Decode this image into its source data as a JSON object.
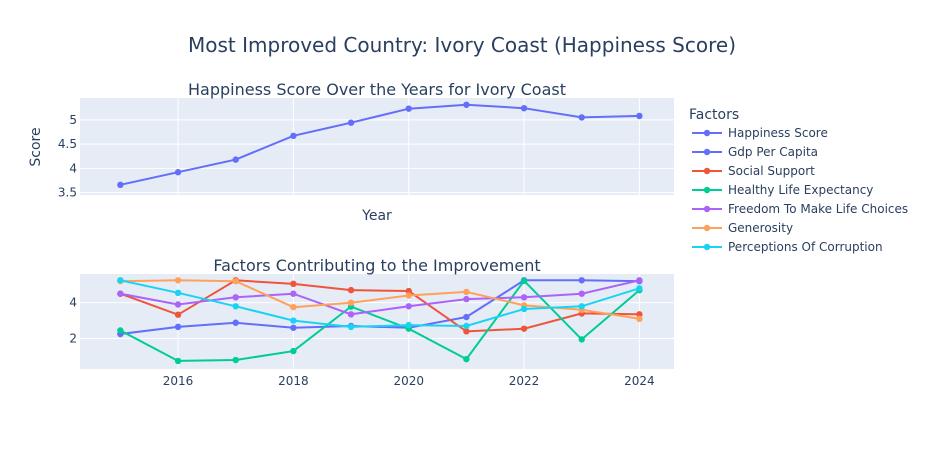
{
  "title": "Most Improved Country: Ivory Coast (Happiness Score)",
  "legend": {
    "title": "Factors",
    "placement": "right"
  },
  "colors": {
    "background": "#ffffff",
    "plot_bg": "#e5ecf6",
    "grid": "#ffffff",
    "text": "#2a3f5f"
  },
  "chart_data": [
    {
      "type": "line",
      "title": "Happiness Score Over the Years for Ivory Coast",
      "xlabel": "Year",
      "ylabel": "Score",
      "grid": true,
      "xlim": [
        2014.3,
        2024.6
      ],
      "ylim": [
        3.45,
        5.45
      ],
      "yticks": [
        3.5,
        4,
        4.5,
        5
      ],
      "ytick_labels": [
        "3.5",
        "4",
        "4.5",
        "5"
      ],
      "x": [
        2015,
        2016,
        2017,
        2018,
        2019,
        2020,
        2021,
        2022,
        2023,
        2024
      ],
      "series": [
        {
          "name": "Happiness Score",
          "color": "#636efa",
          "values": [
            3.66,
            3.92,
            4.18,
            4.67,
            4.94,
            5.23,
            5.31,
            5.24,
            5.05,
            5.08
          ]
        }
      ]
    },
    {
      "type": "line",
      "title": "Factors Contributing to the Improvement",
      "xlabel": "",
      "ylabel": "",
      "grid": true,
      "xlim": [
        2014.3,
        2024.6
      ],
      "ylim": [
        0.3,
        5.6
      ],
      "xticks": [
        2016,
        2018,
        2020,
        2022,
        2024
      ],
      "xtick_labels": [
        "2016",
        "2018",
        "2020",
        "2022",
        "2024"
      ],
      "yticks": [
        2,
        4
      ],
      "ytick_labels": [
        "2",
        "4"
      ],
      "x": [
        2015,
        2016,
        2017,
        2018,
        2019,
        2020,
        2021,
        2022,
        2023,
        2024
      ],
      "series": [
        {
          "name": "Gdp Per Capita",
          "color": "#636efa",
          "values": [
            2.25,
            2.65,
            2.88,
            2.6,
            2.7,
            2.6,
            3.2,
            5.25,
            5.25,
            5.2
          ]
        },
        {
          "name": "Social Support",
          "color": "#ef553b",
          "values": [
            4.5,
            3.33,
            5.25,
            5.05,
            4.7,
            4.65,
            2.4,
            2.55,
            3.4,
            3.35
          ]
        },
        {
          "name": "Healthy Life Expectancy",
          "color": "#00cc96",
          "values": [
            2.45,
            0.75,
            0.8,
            1.3,
            3.78,
            2.55,
            0.85,
            5.22,
            1.95,
            4.7
          ]
        },
        {
          "name": "Freedom To Make Life Choices",
          "color": "#ab63fa",
          "values": [
            4.5,
            3.9,
            4.3,
            4.5,
            3.35,
            3.8,
            4.2,
            4.3,
            4.5,
            5.25
          ]
        },
        {
          "name": "Generosity",
          "color": "#ffa15a",
          "values": [
            5.2,
            5.25,
            5.2,
            3.75,
            4.0,
            4.4,
            4.6,
            3.85,
            3.6,
            3.1
          ]
        },
        {
          "name": "Perceptions Of Corruption",
          "color": "#19d3f3",
          "values": [
            5.25,
            4.55,
            3.8,
            3.0,
            2.65,
            2.75,
            2.7,
            3.65,
            3.8,
            4.8
          ]
        }
      ]
    }
  ],
  "legend_items": [
    {
      "name": "Happiness Score",
      "color": "#636efa"
    },
    {
      "name": "Gdp Per Capita",
      "color": "#636efa"
    },
    {
      "name": "Social Support",
      "color": "#ef553b"
    },
    {
      "name": "Healthy Life Expectancy",
      "color": "#00cc96"
    },
    {
      "name": "Freedom To Make Life Choices",
      "color": "#ab63fa"
    },
    {
      "name": "Generosity",
      "color": "#ffa15a"
    },
    {
      "name": "Perceptions Of Corruption",
      "color": "#19d3f3"
    }
  ]
}
